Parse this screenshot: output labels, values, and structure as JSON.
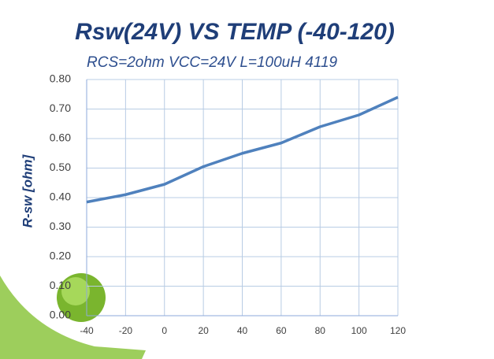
{
  "chart_data": {
    "type": "line",
    "title": "Rsw(24V)  VS  TEMP (-40-120)",
    "subtitle": "RCS=2ohm VCC=24V  L=100uH   4119",
    "y_label": "R-sw  [ohm]",
    "x": [
      -40,
      -20,
      0,
      20,
      40,
      60,
      80,
      100,
      120
    ],
    "series": [
      {
        "name": "Rsw",
        "color": "#4f81bd",
        "values": [
          0.385,
          0.41,
          0.445,
          0.505,
          0.55,
          0.585,
          0.64,
          0.68,
          0.74
        ]
      }
    ],
    "xlim": [
      -40,
      120
    ],
    "xticks": [
      -40,
      -20,
      0,
      20,
      40,
      60,
      80,
      100,
      120
    ],
    "ylim": [
      0,
      0.8
    ],
    "yticks": [
      {
        "value": 0,
        "label": "0.00"
      },
      {
        "value": 0.1,
        "label": "0.10"
      },
      {
        "value": 0.2,
        "label": "0.20"
      },
      {
        "value": 0.3,
        "label": "0.30"
      },
      {
        "value": 0.4,
        "label": "0.40"
      },
      {
        "value": 0.5,
        "label": "0.50"
      },
      {
        "value": 0.6,
        "label": "0.60"
      },
      {
        "value": 0.7,
        "label": "0.70"
      },
      {
        "value": 0.8,
        "label": "0.80"
      }
    ],
    "grid": true
  }
}
